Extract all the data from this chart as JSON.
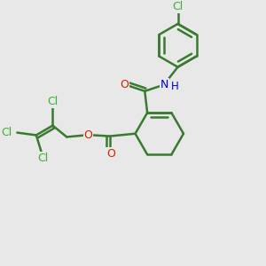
{
  "bg_color": "#e8e8e8",
  "bond_color": "#3a7a30",
  "bond_width": 1.8,
  "atom_colors": {
    "Cl": "#3ab030",
    "O": "#cc2200",
    "N": "#0000cc",
    "H": "#0000cc"
  },
  "figsize": [
    3.0,
    3.0
  ],
  "dpi": 100,
  "dbo": 0.012,
  "fontsize": 9.0
}
